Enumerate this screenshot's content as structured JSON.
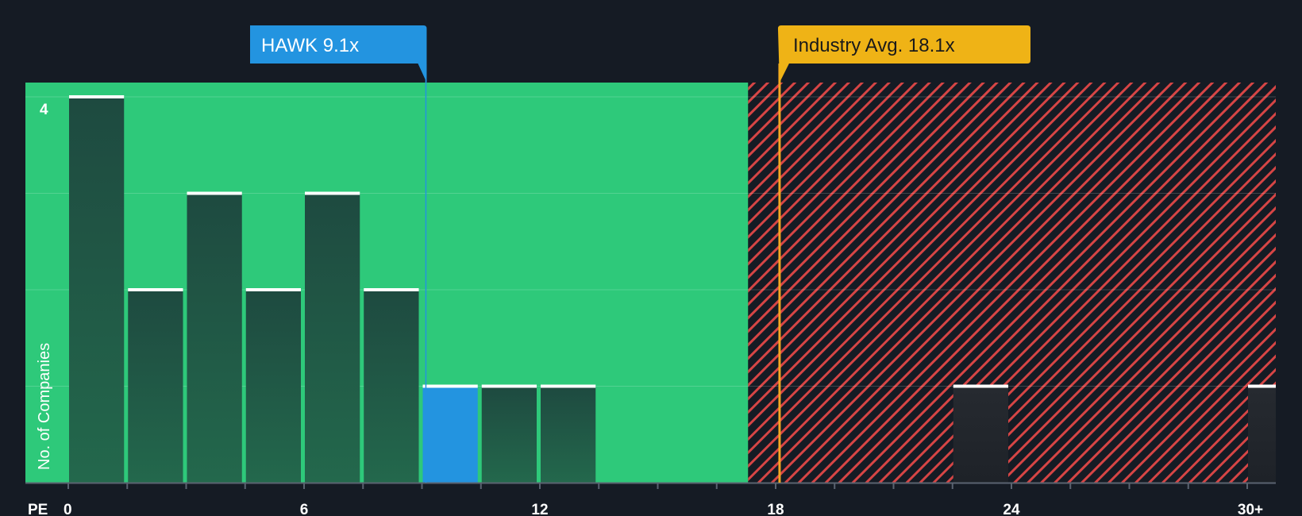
{
  "chart_data": {
    "type": "bar",
    "xlabel": "PE",
    "ylabel": "No. of Companies",
    "x_ticks": [
      "0",
      "6",
      "12",
      "18",
      "24",
      "30+"
    ],
    "y_ticks": [
      "4"
    ],
    "ylim": [
      0,
      4
    ],
    "xlim": [
      -1,
      31
    ],
    "bin_width": 1.5,
    "bins": [
      {
        "start": 0,
        "value": 4
      },
      {
        "start": 1.5,
        "value": 2
      },
      {
        "start": 3,
        "value": 3
      },
      {
        "start": 4.5,
        "value": 2
      },
      {
        "start": 6,
        "value": 3
      },
      {
        "start": 7.5,
        "value": 2
      },
      {
        "start": 9,
        "value": 1,
        "highlight": true
      },
      {
        "start": 10.5,
        "value": 1
      },
      {
        "start": 12,
        "value": 1
      },
      {
        "start": 22.5,
        "value": 1
      },
      {
        "start": 30,
        "value": 1
      }
    ],
    "fair_range_end": 17.3,
    "company": {
      "label": "HAWK 9.1x",
      "value": 9.1
    },
    "industry": {
      "label": "Industry Avg. 18.1x",
      "value": 18.1
    },
    "colors": {
      "background": "#151b24",
      "fair_zone": "#2ec97a",
      "overvalued_zone": "#151b24",
      "hatch": "#d64545",
      "bar": "#1c4a3c",
      "bar_highlight": "#2394e0",
      "bar_cap": "#ffffff",
      "company_callout": "#2394e0",
      "industry_callout": "#efb316",
      "industry_line": "#f5a623"
    }
  }
}
